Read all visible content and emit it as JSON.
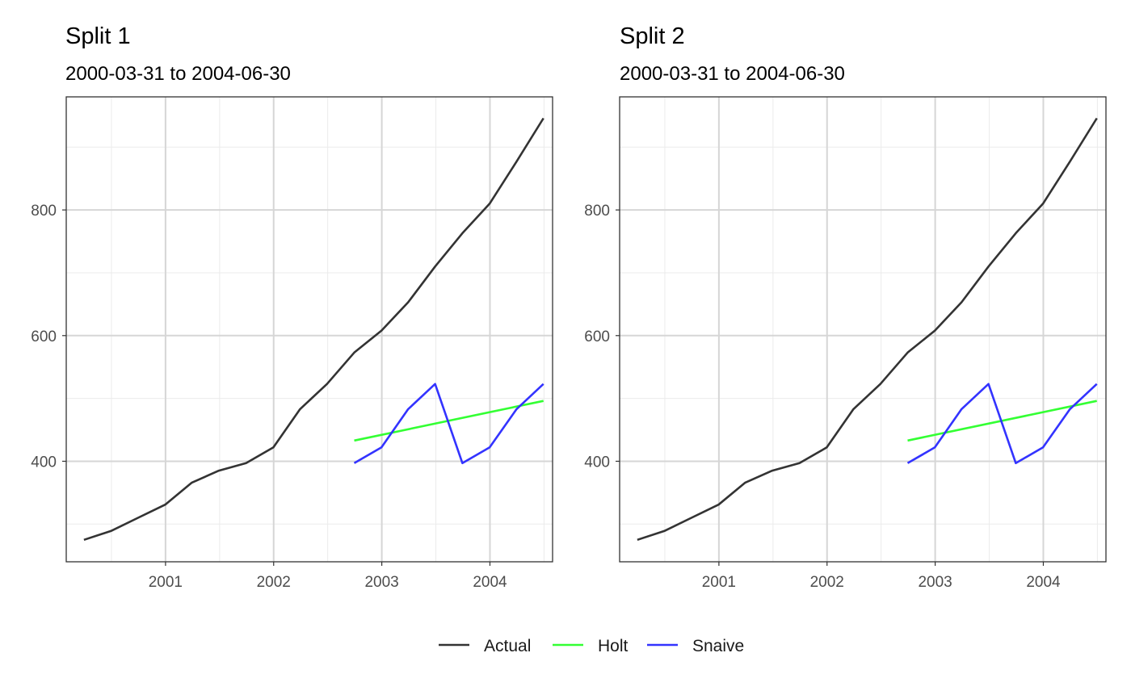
{
  "chart_data": [
    {
      "type": "line",
      "title": "Split 1",
      "subtitle": "2000-03-31 to 2004-06-30",
      "xlabel": "",
      "ylabel": "",
      "x_ticks": [
        "2001",
        "2002",
        "2003",
        "2004"
      ],
      "y_ticks": [
        "400",
        "600",
        "800"
      ],
      "xlim": [
        "2000-01-31",
        "2004-07-31"
      ],
      "ylim": [
        240,
        980
      ],
      "grid": true,
      "series": [
        {
          "name": "Actual",
          "color": "#333333",
          "x": [
            "2000-03-31",
            "2000-06-30",
            "2000-09-30",
            "2000-12-31",
            "2001-03-31",
            "2001-06-30",
            "2001-09-30",
            "2001-12-31",
            "2002-03-31",
            "2002-06-30",
            "2002-09-30",
            "2002-12-31",
            "2003-03-31",
            "2003-06-30",
            "2003-09-30",
            "2003-12-31",
            "2004-03-31",
            "2004-06-30"
          ],
          "values": [
            275,
            289,
            310,
            331,
            366,
            385,
            397,
            422,
            483,
            523,
            573,
            608,
            653,
            710,
            763,
            810,
            877,
            946
          ]
        },
        {
          "name": "Holt",
          "color": "#33ff33",
          "x": [
            "2002-09-30",
            "2004-06-30"
          ],
          "values": [
            433,
            496
          ]
        },
        {
          "name": "Snaive",
          "color": "#3333ff",
          "x": [
            "2002-09-30",
            "2002-12-31",
            "2003-03-31",
            "2003-06-30",
            "2003-09-30",
            "2003-12-31",
            "2004-03-31",
            "2004-06-30"
          ],
          "values": [
            397,
            422,
            483,
            523,
            397,
            422,
            483,
            523
          ]
        }
      ]
    },
    {
      "type": "line",
      "title": "Split 2",
      "subtitle": "2000-03-31 to 2004-06-30",
      "xlabel": "",
      "ylabel": "",
      "x_ticks": [
        "2001",
        "2002",
        "2003",
        "2004"
      ],
      "y_ticks": [
        "400",
        "600",
        "800"
      ],
      "xlim": [
        "2000-01-31",
        "2004-07-31"
      ],
      "ylim": [
        240,
        980
      ],
      "grid": true,
      "series": [
        {
          "name": "Actual",
          "color": "#333333",
          "x": [
            "2000-03-31",
            "2000-06-30",
            "2000-09-30",
            "2000-12-31",
            "2001-03-31",
            "2001-06-30",
            "2001-09-30",
            "2001-12-31",
            "2002-03-31",
            "2002-06-30",
            "2002-09-30",
            "2002-12-31",
            "2003-03-31",
            "2003-06-30",
            "2003-09-30",
            "2003-12-31",
            "2004-03-31",
            "2004-06-30"
          ],
          "values": [
            275,
            289,
            310,
            331,
            366,
            385,
            397,
            422,
            483,
            523,
            573,
            608,
            653,
            710,
            763,
            810,
            877,
            946
          ]
        },
        {
          "name": "Holt",
          "color": "#33ff33",
          "x": [
            "2002-09-30",
            "2004-06-30"
          ],
          "values": [
            433,
            496
          ]
        },
        {
          "name": "Snaive",
          "color": "#3333ff",
          "x": [
            "2002-09-30",
            "2002-12-31",
            "2003-03-31",
            "2003-06-30",
            "2003-09-30",
            "2003-12-31",
            "2004-03-31",
            "2004-06-30"
          ],
          "values": [
            397,
            422,
            483,
            523,
            397,
            422,
            483,
            523
          ]
        }
      ]
    }
  ],
  "legend": {
    "position": "bottom",
    "items": [
      {
        "label": "Actual",
        "color": "#333333"
      },
      {
        "label": "Holt",
        "color": "#33ff33"
      },
      {
        "label": "Snaive",
        "color": "#3333ff"
      }
    ]
  }
}
